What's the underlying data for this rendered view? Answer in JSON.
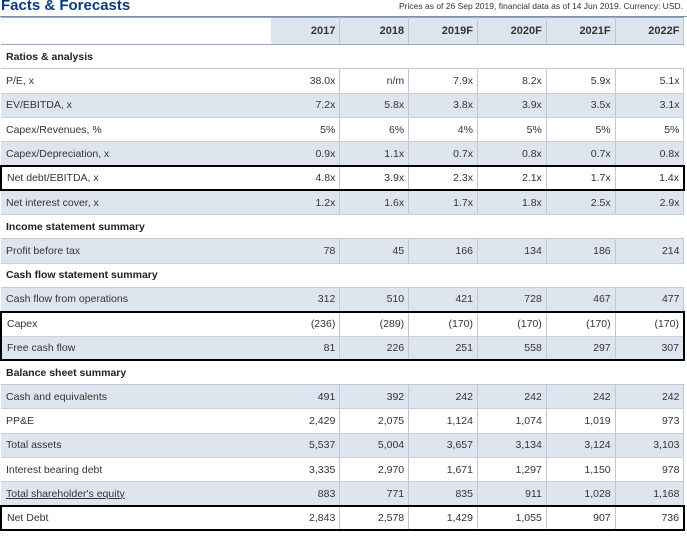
{
  "title": "Facts & Forecasts",
  "meta": "Prices as of 26 Sep 2019, financial data as of 14 Jun 2019. Currency: USD.",
  "years": [
    "2017",
    "2018",
    "2019F",
    "2020F",
    "2021F",
    "2022F"
  ],
  "sections": {
    "ratios": "Ratios & analysis",
    "income": "Income statement summary",
    "cashflow": "Cash flow statement summary",
    "balance": "Balance sheet summary"
  },
  "rows": {
    "pe": {
      "label": "P/E, x",
      "values": [
        "38.0x",
        "n/m",
        "7.9x",
        "8.2x",
        "5.9x",
        "5.1x"
      ]
    },
    "ev_ebitda": {
      "label": "EV/EBITDA, x",
      "values": [
        "7.2x",
        "5.8x",
        "3.8x",
        "3.9x",
        "3.5x",
        "3.1x"
      ]
    },
    "capex_rev": {
      "label": "Capex/Revenues, %",
      "values": [
        "5%",
        "6%",
        "4%",
        "5%",
        "5%",
        "5%"
      ]
    },
    "capex_dep": {
      "label": "Capex/Depreciation, x",
      "values": [
        "0.9x",
        "1.1x",
        "0.7x",
        "0.8x",
        "0.7x",
        "0.8x"
      ]
    },
    "nd_ebitda": {
      "label": "Net debt/EBITDA, x",
      "values": [
        "4.8x",
        "3.9x",
        "2.3x",
        "2.1x",
        "1.7x",
        "1.4x"
      ]
    },
    "int_cover": {
      "label": "Net interest cover, x",
      "values": [
        "1.2x",
        "1.6x",
        "1.7x",
        "1.8x",
        "2.5x",
        "2.9x"
      ]
    },
    "pbt": {
      "label": "Profit before tax",
      "values": [
        "78",
        "45",
        "166",
        "134",
        "186",
        "214"
      ]
    },
    "cfo": {
      "label": "Cash flow from operations",
      "values": [
        "312",
        "510",
        "421",
        "728",
        "467",
        "477"
      ]
    },
    "capex": {
      "label": "Capex",
      "values": [
        "(236)",
        "(289)",
        "(170)",
        "(170)",
        "(170)",
        "(170)"
      ]
    },
    "fcf": {
      "label": "Free cash flow",
      "values": [
        "81",
        "226",
        "251",
        "558",
        "297",
        "307"
      ]
    },
    "cash": {
      "label": "Cash and equivalents",
      "values": [
        "491",
        "392",
        "242",
        "242",
        "242",
        "242"
      ]
    },
    "ppe": {
      "label": "PP&E",
      "values": [
        "2,429",
        "2,075",
        "1,124",
        "1,074",
        "1,019",
        "973"
      ]
    },
    "assets": {
      "label": "Total assets",
      "values": [
        "5,537",
        "5,004",
        "3,657",
        "3,134",
        "3,124",
        "3,103"
      ]
    },
    "ibd": {
      "label": "Interest bearing debt",
      "values": [
        "3,335",
        "2,970",
        "1,671",
        "1,297",
        "1,150",
        "978"
      ]
    },
    "equity": {
      "label": "Total shareholder's equity",
      "values": [
        "883",
        "771",
        "835",
        "911",
        "1,028",
        "1,168"
      ]
    },
    "netdebt": {
      "label": "Net Debt",
      "values": [
        "2,843",
        "2,578",
        "1,429",
        "1,055",
        "907",
        "736"
      ]
    }
  }
}
